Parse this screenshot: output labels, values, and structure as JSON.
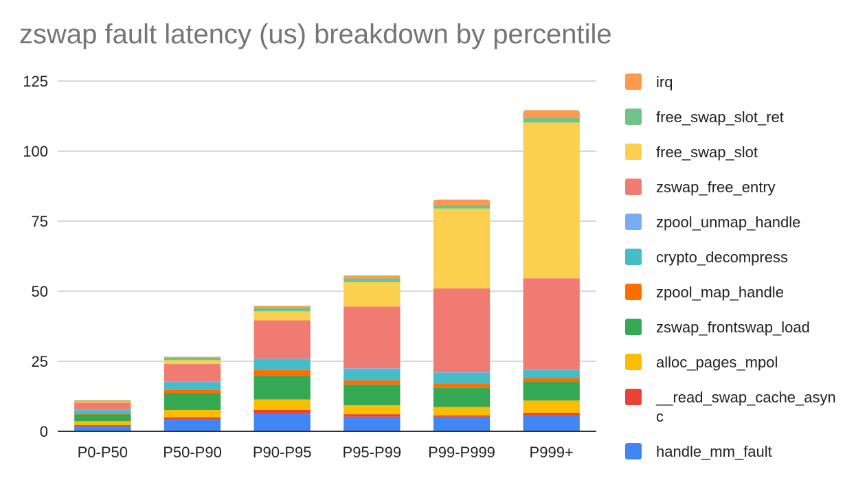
{
  "chart_data": {
    "type": "bar",
    "stacked": true,
    "title": "zswap fault latency (us) breakdown by percentile",
    "xlabel": "",
    "ylabel": "",
    "ylim": [
      0,
      125
    ],
    "yticks": [
      0,
      25,
      50,
      75,
      100,
      125
    ],
    "grid": true,
    "legend_position": "right",
    "categories": [
      "P0-P50",
      "P50-P90",
      "P90-P95",
      "P95-P99",
      "P99-P999",
      "P999+"
    ],
    "series": [
      {
        "name": "handle_mm_fault",
        "color": "#4285F4",
        "values": [
          1.8,
          4.2,
          6.2,
          5.2,
          5.2,
          5.6
        ]
      },
      {
        "name": "__read_swap_cache_async",
        "color": "#EA4335",
        "values": [
          0.4,
          0.8,
          1.4,
          0.9,
          0.5,
          1.0
        ]
      },
      {
        "name": "alloc_pages_mpol",
        "color": "#FBBC04",
        "values": [
          1.4,
          2.6,
          3.8,
          3.2,
          3.0,
          4.4
        ]
      },
      {
        "name": "zswap_frontswap_load",
        "color": "#34A853",
        "values": [
          2.4,
          6.0,
          8.4,
          7.4,
          6.8,
          6.8
        ]
      },
      {
        "name": "zpool_map_handle",
        "color": "#FF6D01",
        "values": [
          0.3,
          1.2,
          2.0,
          1.5,
          1.4,
          1.2
        ]
      },
      {
        "name": "crypto_decompress",
        "color": "#46BDC6",
        "values": [
          1.2,
          2.6,
          4.0,
          4.0,
          4.0,
          2.8
        ]
      },
      {
        "name": "zpool_unmap_handle",
        "color": "#7BAAF7",
        "values": [
          0.2,
          0.4,
          0.2,
          0.3,
          0.3,
          0.2
        ]
      },
      {
        "name": "zswap_free_entry",
        "color": "#F07B72",
        "values": [
          2.5,
          6.2,
          13.6,
          22.0,
          29.8,
          32.6
        ]
      },
      {
        "name": "free_swap_slot",
        "color": "#FCD04F",
        "values": [
          0.4,
          1.4,
          3.2,
          8.7,
          28.5,
          55.6
        ]
      },
      {
        "name": "free_swap_slot_ret",
        "color": "#71C287",
        "values": [
          0.3,
          0.9,
          1.4,
          1.4,
          1.2,
          1.6
        ]
      },
      {
        "name": "irq",
        "color": "#FF994D",
        "values": [
          0.2,
          0.3,
          0.6,
          1.0,
          2.0,
          2.8
        ]
      }
    ]
  }
}
